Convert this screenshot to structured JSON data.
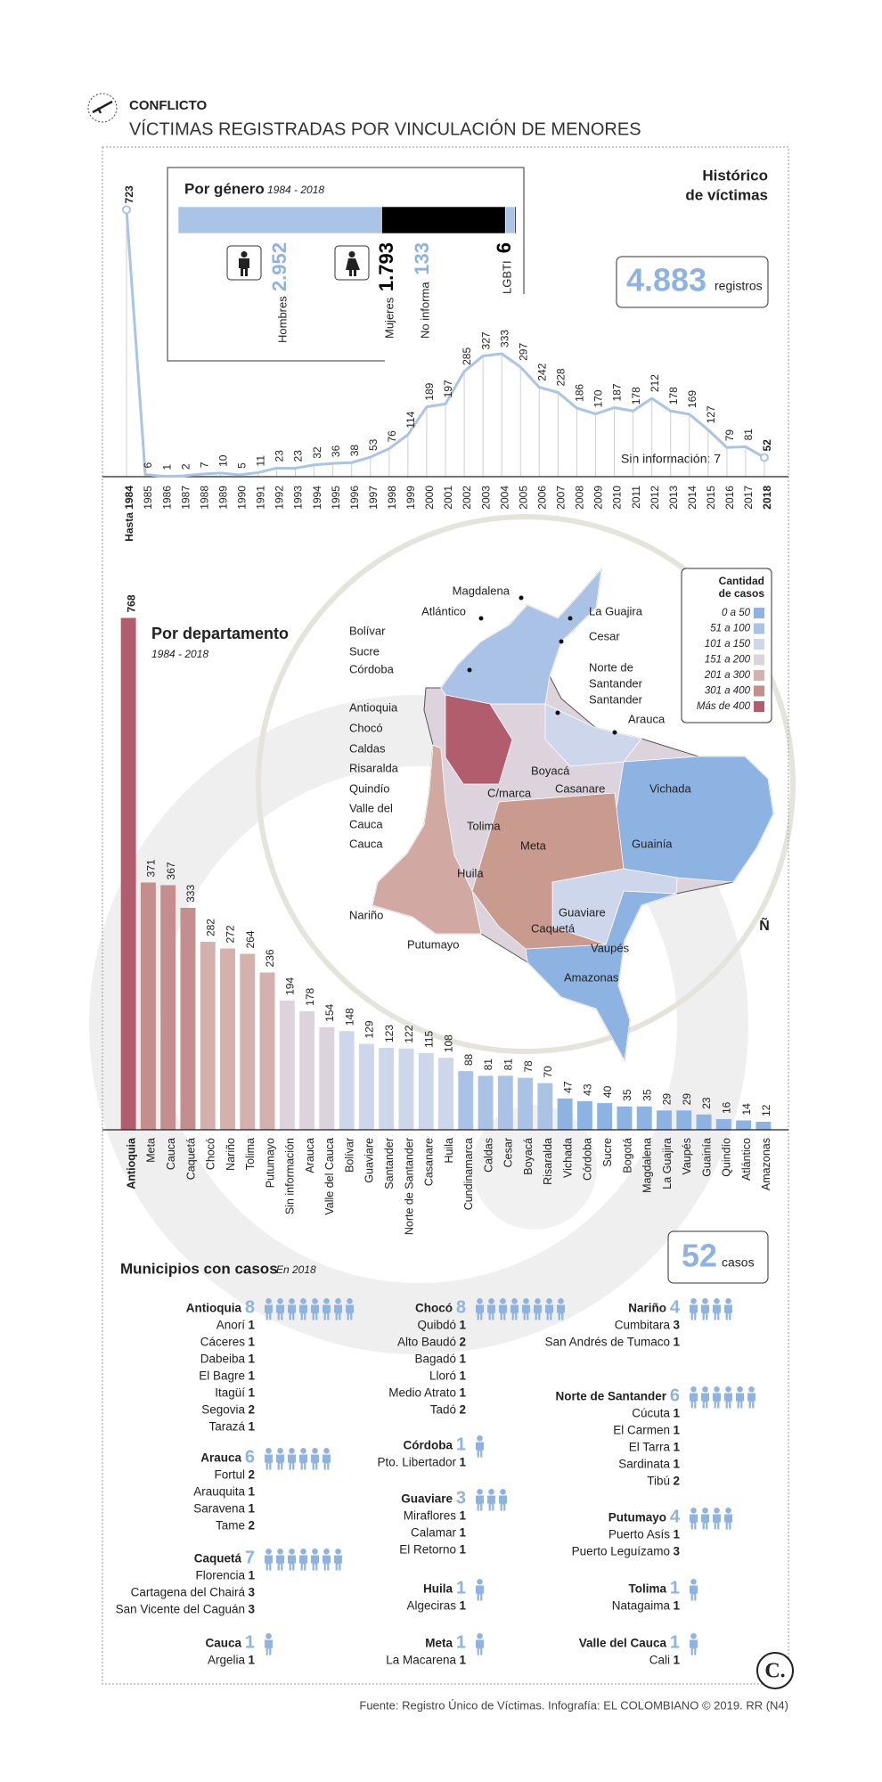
{
  "header": {
    "kicker": "CONFLICTO",
    "title": "VÍCTIMAS REGISTRADAS POR VINCULACIÓN DE MENORES"
  },
  "chart_data": [
    {
      "type": "line",
      "title": [
        "Histórico",
        "de víctimas"
      ],
      "categories": [
        "Hasta 1984",
        "1985",
        "1986",
        "1987",
        "1988",
        "1989",
        "1990",
        "1991",
        "1992",
        "1993",
        "1994",
        "1995",
        "1996",
        "1997",
        "1998",
        "1999",
        "2000",
        "2001",
        "2002",
        "2003",
        "2004",
        "2005",
        "2006",
        "2007",
        "2008",
        "2009",
        "2010",
        "2011",
        "2012",
        "2013",
        "2014",
        "2015",
        "2016",
        "2017",
        "2018"
      ],
      "values": [
        723,
        6,
        1,
        2,
        7,
        10,
        5,
        11,
        23,
        23,
        32,
        36,
        38,
        53,
        76,
        114,
        189,
        197,
        285,
        327,
        333,
        297,
        242,
        228,
        186,
        170,
        187,
        178,
        212,
        178,
        169,
        127,
        79,
        81,
        52
      ],
      "color": "#a9c4e6",
      "ylim": [
        0,
        760
      ],
      "total": 4883,
      "total_label": "4.883",
      "total_unit": "registros",
      "note": "Sin información: 7"
    },
    {
      "type": "stacked-bar",
      "title": "Por género",
      "subtitle": "1984 - 2018",
      "categories": [
        "Hombres",
        "Mujeres",
        "No informa",
        "LGBTI"
      ],
      "values": [
        2952,
        1793,
        133,
        6
      ],
      "value_labels": [
        "2.952",
        "1.793",
        "133",
        "6"
      ],
      "colors": [
        "#a9c4e6",
        "#000000",
        "#a9c4e6",
        "#000000"
      ]
    },
    {
      "type": "bar",
      "title": "Por departamento",
      "subtitle": "1984 - 2018",
      "categories": [
        "Antioquia",
        "Meta",
        "Cauca",
        "Caquetá",
        "Chocó",
        "Nariño",
        "Tolima",
        "Putumayo",
        "Sin información",
        "Arauca",
        "Valle del Cauca",
        "Bolívar",
        "Guaviare",
        "Santander",
        "Norte de Santander",
        "Casanare",
        "Huila",
        "Cundinamarca",
        "Caldas",
        "Cesar",
        "Boyacá",
        "Risaralda",
        "Vichada",
        "Córdoba",
        "Sucre",
        "Bogotá",
        "Magdalena",
        "La Guajira",
        "Vaupés",
        "Guainía",
        "Quindío",
        "Atlántico",
        "Amazonas"
      ],
      "values": [
        768,
        371,
        367,
        333,
        282,
        272,
        264,
        236,
        194,
        178,
        154,
        148,
        129,
        123,
        122,
        115,
        108,
        88,
        81,
        81,
        78,
        70,
        47,
        43,
        40,
        35,
        35,
        29,
        29,
        23,
        16,
        14,
        12
      ],
      "colors": [
        "#b25d6e",
        "#c48e8c",
        "#c48e8c",
        "#c48e8c",
        "#d5b1ae",
        "#d5b1ae",
        "#d5b1ae",
        "#d5b1ae",
        "#ddd3dc",
        "#ddd3dc",
        "#ddd3dc",
        "#cdd6ea",
        "#cdd6ea",
        "#cdd6ea",
        "#cdd6ea",
        "#cdd6ea",
        "#cdd6ea",
        "#a9c2e6",
        "#a9c2e6",
        "#a9c2e6",
        "#a9c2e6",
        "#a9c2e6",
        "#8db3e3",
        "#8db3e3",
        "#8db3e3",
        "#8db3e3",
        "#8db3e3",
        "#8db3e3",
        "#8db3e3",
        "#8db3e3",
        "#8db3e3",
        "#8db3e3",
        "#8db3e3"
      ],
      "ylim": [
        0,
        770
      ]
    }
  ],
  "map": {
    "legend_title": [
      "Cantidad",
      "de casos"
    ],
    "legend": [
      {
        "label": "0 a 50",
        "color": "#8db3e3"
      },
      {
        "label": "51 a 100",
        "color": "#a9c2e6"
      },
      {
        "label": "101 a 150",
        "color": "#cdd6ea"
      },
      {
        "label": "151 a 200",
        "color": "#ddd3dc"
      },
      {
        "label": "201 a 300",
        "color": "#d5b1ae"
      },
      {
        "label": "301 a 400",
        "color": "#c48e8c"
      },
      {
        "label": "Más de 400",
        "color": "#b25d6e"
      }
    ],
    "labels": [
      "Magdalena",
      "Atlántico",
      "Bolívar",
      "Sucre",
      "Córdoba",
      "Antioquia",
      "Chocó",
      "Caldas",
      "Risaralda",
      "Quindío",
      [
        "Valle del",
        "Cauca"
      ],
      "Cauca",
      "Nariño",
      "Putumayo",
      "La Guajira",
      "Cesar",
      [
        "Norte de",
        "Santander"
      ],
      "Santander",
      "Arauca",
      "Boyacá",
      "C/marca",
      "Casanare",
      "Vichada",
      "Tolima",
      "Meta",
      "Guainía",
      "Huila",
      "Guaviare",
      "Caquetá",
      "Vaupés",
      "Amazonas"
    ],
    "mark": "Ñ"
  },
  "municipios": {
    "title": "Municipios con casos",
    "subtitle": "En 2018",
    "total": 52,
    "total_unit": "casos",
    "groups": [
      {
        "name": "Antioquia",
        "count": 8,
        "items": [
          {
            "name": "Anorí",
            "count": 1
          },
          {
            "name": "Cáceres",
            "count": 1
          },
          {
            "name": "Dabeiba",
            "count": 1
          },
          {
            "name": "El Bagre",
            "count": 1
          },
          {
            "name": "Itagüí",
            "count": 1
          },
          {
            "name": "Segovia",
            "count": 2
          },
          {
            "name": "Tarazá",
            "count": 1
          }
        ]
      },
      {
        "name": "Arauca",
        "count": 6,
        "items": [
          {
            "name": "Fortul",
            "count": 2
          },
          {
            "name": "Arauquita",
            "count": 1
          },
          {
            "name": "Saravena",
            "count": 1
          },
          {
            "name": "Tame",
            "count": 2
          }
        ]
      },
      {
        "name": "Caquetá",
        "count": 7,
        "items": [
          {
            "name": "Florencia",
            "count": 1
          },
          {
            "name": "Cartagena del Chairá",
            "count": 3
          },
          {
            "name": "San Vicente del Caguán",
            "count": 3
          }
        ]
      },
      {
        "name": "Cauca",
        "count": 1,
        "items": [
          {
            "name": "Argelia",
            "count": 1
          }
        ]
      },
      {
        "name": "Chocó",
        "count": 8,
        "items": [
          {
            "name": "Quibdó",
            "count": 1
          },
          {
            "name": "Alto Baudó",
            "count": 2
          },
          {
            "name": "Bagadó",
            "count": 1
          },
          {
            "name": "Lloró",
            "count": 1
          },
          {
            "name": "Medio Atrato",
            "count": 1
          },
          {
            "name": "Tadó",
            "count": 2
          }
        ]
      },
      {
        "name": "Córdoba",
        "count": 1,
        "items": [
          {
            "name": "Pto. Libertador",
            "count": 1
          }
        ]
      },
      {
        "name": "Guaviare",
        "count": 3,
        "items": [
          {
            "name": "Miraflores",
            "count": 1
          },
          {
            "name": "Calamar",
            "count": 1
          },
          {
            "name": "El Retorno",
            "count": 1
          }
        ]
      },
      {
        "name": "Huila",
        "count": 1,
        "items": [
          {
            "name": "Algeciras",
            "count": 1
          }
        ]
      },
      {
        "name": "Meta",
        "count": 1,
        "items": [
          {
            "name": "La Macarena",
            "count": 1
          }
        ]
      },
      {
        "name": "Nariño",
        "count": 4,
        "items": [
          {
            "name": "Cumbitara",
            "count": 3
          },
          {
            "name": "San Andrés de Tumaco",
            "count": 1
          }
        ]
      },
      {
        "name": "Norte de Santander",
        "count": 6,
        "items": [
          {
            "name": "Cúcuta",
            "count": 1
          },
          {
            "name": "El Carmen",
            "count": 1
          },
          {
            "name": "El Tarra",
            "count": 1
          },
          {
            "name": "Sardinata",
            "count": 1
          },
          {
            "name": "Tibú",
            "count": 2
          }
        ]
      },
      {
        "name": "Putumayo",
        "count": 4,
        "items": [
          {
            "name": "Puerto Asís",
            "count": 1
          },
          {
            "name": "Puerto Leguízamo",
            "count": 3
          }
        ]
      },
      {
        "name": "Tolima",
        "count": 1,
        "items": [
          {
            "name": "Natagaima",
            "count": 1
          }
        ]
      },
      {
        "name": "Valle del Cauca",
        "count": 1,
        "items": [
          {
            "name": "Cali",
            "count": 1
          }
        ]
      }
    ]
  },
  "footer": {
    "source": "Fuente: Registro Único de Víctimas. Infografía: EL COLOMBIANO © 2019. RR (N4)",
    "logo": "C."
  }
}
